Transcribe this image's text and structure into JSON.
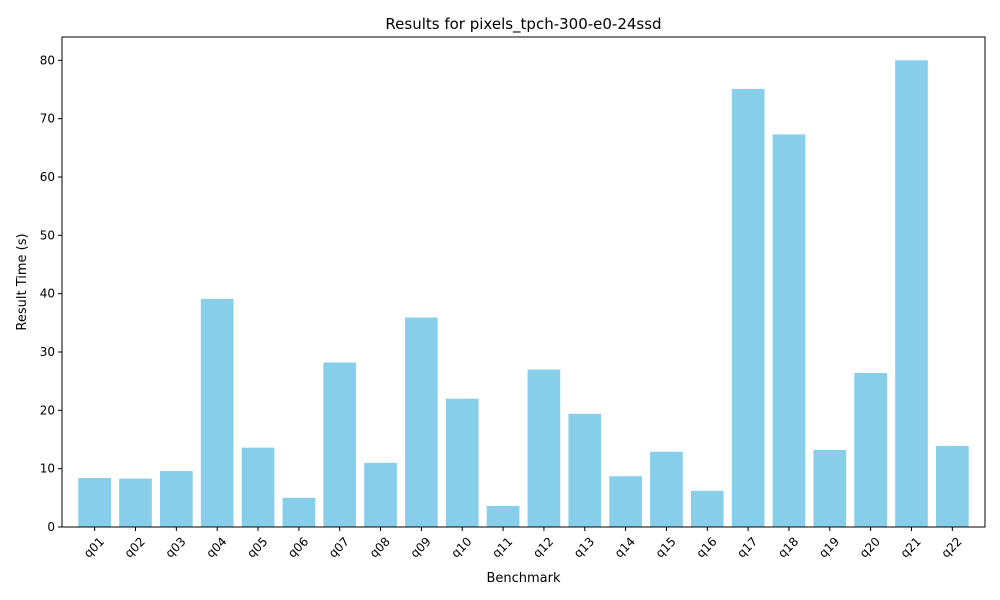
{
  "chart_data": {
    "type": "bar",
    "title": "Results for pixels_tpch-300-e0-24ssd",
    "xlabel": "Benchmark",
    "ylabel": "Result Time (s)",
    "categories": [
      "q01",
      "q02",
      "q03",
      "q04",
      "q05",
      "q06",
      "q07",
      "q08",
      "q09",
      "q10",
      "q11",
      "q12",
      "q13",
      "q14",
      "q15",
      "q16",
      "q17",
      "q18",
      "q19",
      "q20",
      "q21",
      "q22"
    ],
    "values": [
      8.4,
      8.3,
      9.6,
      39.1,
      13.6,
      5.0,
      28.2,
      11.0,
      35.9,
      22.0,
      3.6,
      27.0,
      19.4,
      8.7,
      12.9,
      6.2,
      75.1,
      67.3,
      13.2,
      26.4,
      80.0,
      13.9
    ],
    "yticks": [
      0,
      10,
      20,
      30,
      40,
      50,
      60,
      70,
      80
    ],
    "ylim": [
      0,
      84
    ],
    "bar_color": "#87ceeb",
    "grid": false,
    "legend": "none"
  }
}
